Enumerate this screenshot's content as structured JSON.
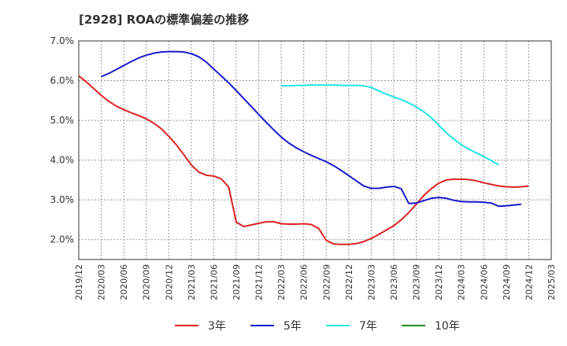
{
  "chart_data": {
    "type": "line",
    "title": "[2928]  ROAの標準偏差の推移",
    "xlabel": "",
    "ylabel": "",
    "ylim": [
      1.5,
      7.0
    ],
    "yticks": [
      2.0,
      3.0,
      4.0,
      5.0,
      6.0,
      7.0
    ],
    "ytick_labels": [
      "2.0%",
      "3.0%",
      "4.0%",
      "5.0%",
      "6.0%",
      "7.0%"
    ],
    "grid": true,
    "legend_position": "bottom",
    "x_range": [
      0,
      63
    ],
    "x_ticks": [
      {
        "label": "2019/12",
        "x": 0
      },
      {
        "label": "2020/03",
        "x": 3
      },
      {
        "label": "2020/06",
        "x": 6
      },
      {
        "label": "2020/09",
        "x": 9
      },
      {
        "label": "2020/12",
        "x": 12
      },
      {
        "label": "2021/03",
        "x": 15
      },
      {
        "label": "2021/06",
        "x": 18
      },
      {
        "label": "2021/09",
        "x": 21
      },
      {
        "label": "2021/12",
        "x": 24
      },
      {
        "label": "2022/03",
        "x": 27
      },
      {
        "label": "2022/06",
        "x": 30
      },
      {
        "label": "2022/09",
        "x": 33
      },
      {
        "label": "2022/12",
        "x": 36
      },
      {
        "label": "2023/03",
        "x": 39
      },
      {
        "label": "2023/06",
        "x": 42
      },
      {
        "label": "2023/09",
        "x": 45
      },
      {
        "label": "2023/12",
        "x": 48
      },
      {
        "label": "2024/03",
        "x": 51
      },
      {
        "label": "2024/06",
        "x": 54
      },
      {
        "label": "2024/09",
        "x": 57
      },
      {
        "label": "2024/12",
        "x": 60
      },
      {
        "label": "2025/03",
        "x": 63
      }
    ],
    "series": [
      {
        "name": "3年",
        "color": "#dd2222",
        "points": [
          [
            0,
            6.12
          ],
          [
            1,
            5.97
          ],
          [
            2,
            5.8
          ],
          [
            3,
            5.63
          ],
          [
            4,
            5.48
          ],
          [
            5,
            5.36
          ],
          [
            6,
            5.27
          ],
          [
            7,
            5.19
          ],
          [
            8,
            5.12
          ],
          [
            9,
            5.04
          ],
          [
            10,
            4.93
          ],
          [
            11,
            4.79
          ],
          [
            12,
            4.6
          ],
          [
            13,
            4.39
          ],
          [
            14,
            4.14
          ],
          [
            15,
            3.88
          ],
          [
            16,
            3.7
          ],
          [
            17,
            3.62
          ],
          [
            18,
            3.6
          ],
          [
            19,
            3.53
          ],
          [
            20,
            3.32
          ],
          [
            21,
            2.44
          ],
          [
            22,
            2.33
          ],
          [
            23,
            2.37
          ],
          [
            24,
            2.41
          ],
          [
            25,
            2.45
          ],
          [
            26,
            2.45
          ],
          [
            27,
            2.4
          ],
          [
            28,
            2.39
          ],
          [
            29,
            2.39
          ],
          [
            30,
            2.4
          ],
          [
            31,
            2.38
          ],
          [
            32,
            2.28
          ],
          [
            33,
            1.98
          ],
          [
            34,
            1.89
          ],
          [
            35,
            1.88
          ],
          [
            36,
            1.88
          ],
          [
            37,
            1.9
          ],
          [
            38,
            1.95
          ],
          [
            39,
            2.03
          ],
          [
            40,
            2.13
          ],
          [
            41,
            2.24
          ],
          [
            42,
            2.35
          ],
          [
            43,
            2.5
          ],
          [
            44,
            2.68
          ],
          [
            45,
            2.89
          ],
          [
            46,
            3.11
          ],
          [
            47,
            3.28
          ],
          [
            48,
            3.42
          ],
          [
            49,
            3.5
          ],
          [
            50,
            3.52
          ],
          [
            51,
            3.52
          ],
          [
            52,
            3.51
          ],
          [
            53,
            3.48
          ],
          [
            54,
            3.43
          ],
          [
            55,
            3.39
          ],
          [
            56,
            3.35
          ],
          [
            57,
            3.33
          ],
          [
            58,
            3.32
          ],
          [
            59,
            3.33
          ],
          [
            60,
            3.35
          ]
        ]
      },
      {
        "name": "5年",
        "color": "#1a1acc",
        "points": [
          [
            3,
            6.1
          ],
          [
            4,
            6.18
          ],
          [
            5,
            6.28
          ],
          [
            6,
            6.38
          ],
          [
            7,
            6.48
          ],
          [
            8,
            6.57
          ],
          [
            9,
            6.64
          ],
          [
            10,
            6.69
          ],
          [
            11,
            6.72
          ],
          [
            12,
            6.73
          ],
          [
            13,
            6.73
          ],
          [
            14,
            6.72
          ],
          [
            15,
            6.68
          ],
          [
            16,
            6.6
          ],
          [
            17,
            6.47
          ],
          [
            18,
            6.29
          ],
          [
            19,
            6.12
          ],
          [
            20,
            5.94
          ],
          [
            21,
            5.75
          ],
          [
            22,
            5.55
          ],
          [
            23,
            5.35
          ],
          [
            24,
            5.15
          ],
          [
            25,
            4.95
          ],
          [
            26,
            4.76
          ],
          [
            27,
            4.58
          ],
          [
            28,
            4.43
          ],
          [
            29,
            4.31
          ],
          [
            30,
            4.21
          ],
          [
            31,
            4.12
          ],
          [
            32,
            4.04
          ],
          [
            33,
            3.96
          ],
          [
            34,
            3.86
          ],
          [
            35,
            3.74
          ],
          [
            36,
            3.61
          ],
          [
            37,
            3.48
          ],
          [
            38,
            3.35
          ],
          [
            39,
            3.29
          ],
          [
            40,
            3.29
          ],
          [
            41,
            3.32
          ],
          [
            42,
            3.34
          ],
          [
            43,
            3.28
          ],
          [
            44,
            2.91
          ],
          [
            45,
            2.92
          ],
          [
            46,
            2.98
          ],
          [
            47,
            3.04
          ],
          [
            48,
            3.06
          ],
          [
            49,
            3.04
          ],
          [
            50,
            2.99
          ],
          [
            51,
            2.96
          ],
          [
            52,
            2.95
          ],
          [
            53,
            2.95
          ],
          [
            54,
            2.94
          ],
          [
            55,
            2.92
          ],
          [
            56,
            2.84
          ],
          [
            57,
            2.85
          ],
          [
            58,
            2.87
          ],
          [
            59,
            2.89
          ]
        ]
      },
      {
        "name": "7年",
        "color": "#22e5e5",
        "points": [
          [
            27,
            5.87
          ],
          [
            28,
            5.87
          ],
          [
            29,
            5.88
          ],
          [
            30,
            5.88
          ],
          [
            31,
            5.89
          ],
          [
            32,
            5.89
          ],
          [
            33,
            5.89
          ],
          [
            34,
            5.89
          ],
          [
            35,
            5.88
          ],
          [
            36,
            5.88
          ],
          [
            37,
            5.88
          ],
          [
            38,
            5.87
          ],
          [
            39,
            5.83
          ],
          [
            40,
            5.74
          ],
          [
            41,
            5.66
          ],
          [
            42,
            5.59
          ],
          [
            43,
            5.52
          ],
          [
            44,
            5.44
          ],
          [
            45,
            5.34
          ],
          [
            46,
            5.22
          ],
          [
            47,
            5.07
          ],
          [
            48,
            4.88
          ],
          [
            49,
            4.69
          ],
          [
            50,
            4.53
          ],
          [
            51,
            4.39
          ],
          [
            52,
            4.28
          ],
          [
            53,
            4.18
          ],
          [
            54,
            4.09
          ],
          [
            55,
            3.99
          ],
          [
            56,
            3.88
          ]
        ]
      },
      {
        "name": "10年",
        "color": "#228822",
        "points": []
      }
    ]
  }
}
